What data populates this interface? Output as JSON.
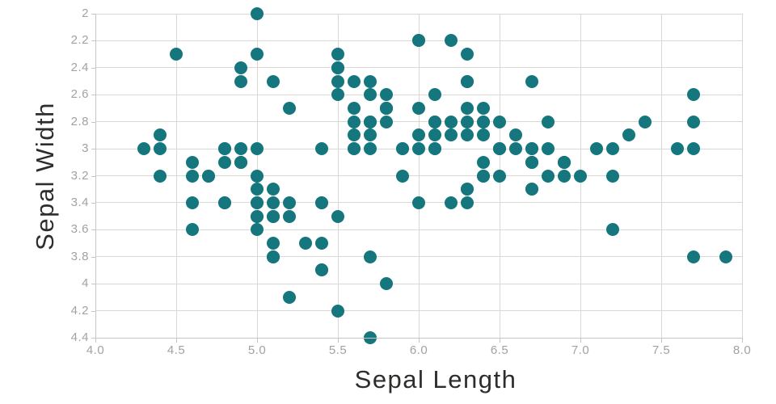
{
  "colors": {
    "background": "#ffffff",
    "marker": "#15767E",
    "grid": "#dbd7d3",
    "axis_line": "#c8c4c0",
    "tick_label": "#a5a19d",
    "axis_title": "#2e2d2c"
  },
  "chart_data": {
    "type": "scatter",
    "title": "",
    "xlabel": "Sepal Length",
    "ylabel": "Sepal Width",
    "xlim": [
      4.0,
      8.0
    ],
    "ylim": [
      2.0,
      4.4
    ],
    "y_axis_inverted": true,
    "grid": true,
    "legend_position": "none",
    "marker_color": "#15767E",
    "marker_diameter_px": 16,
    "x_ticks": [
      {
        "value": 4.0,
        "label": "4.0"
      },
      {
        "value": 4.5,
        "label": "4.5"
      },
      {
        "value": 5.0,
        "label": "5.0"
      },
      {
        "value": 5.5,
        "label": "5.5"
      },
      {
        "value": 6.0,
        "label": "6.0"
      },
      {
        "value": 6.5,
        "label": "6.5"
      },
      {
        "value": 7.0,
        "label": "7.0"
      },
      {
        "value": 7.5,
        "label": "7.5"
      },
      {
        "value": 8.0,
        "label": "8.0"
      }
    ],
    "y_ticks": [
      {
        "value": 2.0,
        "label": "2"
      },
      {
        "value": 2.2,
        "label": "2.2"
      },
      {
        "value": 2.4,
        "label": "2.4"
      },
      {
        "value": 2.6,
        "label": "2.6"
      },
      {
        "value": 2.8,
        "label": "2.8"
      },
      {
        "value": 3.0,
        "label": "3"
      },
      {
        "value": 3.2,
        "label": "3.2"
      },
      {
        "value": 3.4,
        "label": "3.4"
      },
      {
        "value": 3.6,
        "label": "3.6"
      },
      {
        "value": 3.8,
        "label": "3.8"
      },
      {
        "value": 4.0,
        "label": "4"
      },
      {
        "value": 4.2,
        "label": "4.2"
      },
      {
        "value": 4.4,
        "label": "4.4"
      }
    ],
    "points": [
      [
        5.1,
        3.5
      ],
      [
        4.9,
        3.0
      ],
      [
        4.7,
        3.2
      ],
      [
        4.6,
        3.1
      ],
      [
        5.0,
        3.6
      ],
      [
        5.4,
        3.9
      ],
      [
        4.6,
        3.4
      ],
      [
        5.0,
        3.4
      ],
      [
        4.4,
        2.9
      ],
      [
        4.9,
        3.1
      ],
      [
        5.4,
        3.7
      ],
      [
        4.8,
        3.4
      ],
      [
        4.8,
        3.0
      ],
      [
        4.3,
        3.0
      ],
      [
        5.8,
        4.0
      ],
      [
        5.7,
        4.4
      ],
      [
        5.4,
        3.9
      ],
      [
        5.1,
        3.5
      ],
      [
        5.7,
        3.8
      ],
      [
        5.1,
        3.8
      ],
      [
        5.4,
        3.4
      ],
      [
        5.1,
        3.7
      ],
      [
        4.6,
        3.6
      ],
      [
        5.1,
        3.3
      ],
      [
        4.8,
        3.4
      ],
      [
        5.0,
        3.0
      ],
      [
        5.0,
        3.4
      ],
      [
        5.2,
        3.5
      ],
      [
        5.2,
        3.4
      ],
      [
        4.7,
        3.2
      ],
      [
        4.8,
        3.1
      ],
      [
        5.4,
        3.4
      ],
      [
        5.2,
        4.1
      ],
      [
        5.5,
        4.2
      ],
      [
        4.9,
        3.1
      ],
      [
        5.0,
        3.2
      ],
      [
        5.5,
        3.5
      ],
      [
        4.9,
        3.1
      ],
      [
        4.4,
        3.0
      ],
      [
        5.1,
        3.4
      ],
      [
        5.0,
        3.5
      ],
      [
        4.5,
        2.3
      ],
      [
        4.4,
        3.2
      ],
      [
        5.0,
        3.5
      ],
      [
        5.1,
        3.8
      ],
      [
        4.8,
        3.0
      ],
      [
        5.1,
        3.8
      ],
      [
        4.6,
        3.2
      ],
      [
        5.3,
        3.7
      ],
      [
        5.0,
        3.3
      ],
      [
        7.0,
        3.2
      ],
      [
        6.4,
        3.2
      ],
      [
        6.9,
        3.1
      ],
      [
        5.5,
        2.3
      ],
      [
        6.5,
        2.8
      ],
      [
        5.7,
        2.8
      ],
      [
        6.3,
        3.3
      ],
      [
        4.9,
        2.4
      ],
      [
        6.6,
        2.9
      ],
      [
        5.2,
        2.7
      ],
      [
        5.0,
        2.0
      ],
      [
        5.9,
        3.0
      ],
      [
        6.0,
        2.2
      ],
      [
        6.1,
        2.9
      ],
      [
        5.6,
        2.9
      ],
      [
        6.7,
        3.1
      ],
      [
        5.6,
        3.0
      ],
      [
        5.8,
        2.7
      ],
      [
        6.2,
        2.2
      ],
      [
        5.6,
        2.5
      ],
      [
        5.9,
        3.2
      ],
      [
        6.1,
        2.8
      ],
      [
        6.3,
        2.5
      ],
      [
        6.1,
        2.8
      ],
      [
        6.4,
        2.9
      ],
      [
        6.6,
        3.0
      ],
      [
        6.8,
        2.8
      ],
      [
        6.7,
        3.0
      ],
      [
        6.0,
        2.9
      ],
      [
        5.7,
        2.6
      ],
      [
        5.5,
        2.4
      ],
      [
        5.5,
        2.4
      ],
      [
        5.8,
        2.7
      ],
      [
        6.0,
        2.7
      ],
      [
        5.4,
        3.0
      ],
      [
        6.0,
        3.4
      ],
      [
        6.7,
        3.1
      ],
      [
        6.3,
        2.3
      ],
      [
        5.6,
        3.0
      ],
      [
        5.5,
        2.5
      ],
      [
        5.5,
        2.6
      ],
      [
        6.1,
        3.0
      ],
      [
        5.8,
        2.6
      ],
      [
        5.0,
        2.3
      ],
      [
        5.6,
        2.7
      ],
      [
        5.7,
        3.0
      ],
      [
        5.7,
        2.9
      ],
      [
        6.2,
        2.9
      ],
      [
        5.1,
        2.5
      ],
      [
        5.7,
        2.8
      ],
      [
        6.3,
        3.3
      ],
      [
        5.8,
        2.7
      ],
      [
        7.1,
        3.0
      ],
      [
        6.3,
        2.9
      ],
      [
        6.5,
        3.0
      ],
      [
        7.6,
        3.0
      ],
      [
        4.9,
        2.5
      ],
      [
        7.3,
        2.9
      ],
      [
        6.7,
        2.5
      ],
      [
        7.2,
        3.6
      ],
      [
        6.5,
        3.2
      ],
      [
        6.4,
        2.7
      ],
      [
        6.8,
        3.0
      ],
      [
        5.7,
        2.5
      ],
      [
        5.8,
        2.8
      ],
      [
        6.4,
        3.2
      ],
      [
        6.5,
        3.0
      ],
      [
        7.7,
        3.8
      ],
      [
        7.7,
        2.6
      ],
      [
        6.0,
        2.2
      ],
      [
        6.9,
        3.2
      ],
      [
        5.6,
        2.8
      ],
      [
        7.7,
        2.8
      ],
      [
        6.3,
        2.7
      ],
      [
        6.7,
        3.3
      ],
      [
        7.2,
        3.2
      ],
      [
        6.2,
        2.8
      ],
      [
        6.1,
        3.0
      ],
      [
        6.4,
        2.8
      ],
      [
        7.2,
        3.0
      ],
      [
        7.4,
        2.8
      ],
      [
        7.9,
        3.8
      ],
      [
        6.4,
        2.8
      ],
      [
        6.3,
        2.8
      ],
      [
        6.1,
        2.6
      ],
      [
        7.7,
        3.0
      ],
      [
        6.3,
        3.4
      ],
      [
        6.4,
        3.1
      ],
      [
        6.0,
        3.0
      ],
      [
        6.9,
        3.1
      ],
      [
        6.7,
        3.1
      ],
      [
        6.9,
        3.1
      ],
      [
        5.8,
        2.7
      ],
      [
        6.8,
        3.2
      ],
      [
        6.7,
        3.3
      ],
      [
        6.7,
        3.0
      ],
      [
        6.3,
        2.5
      ],
      [
        6.5,
        3.0
      ],
      [
        6.2,
        3.4
      ],
      [
        5.9,
        3.0
      ]
    ]
  }
}
